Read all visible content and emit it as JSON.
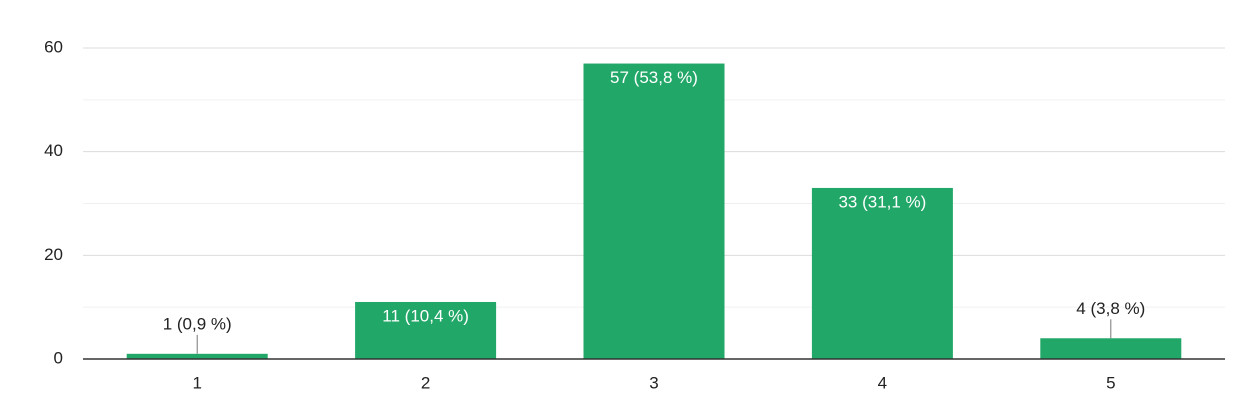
{
  "chart_data": {
    "type": "bar",
    "categories": [
      "1",
      "2",
      "3",
      "4",
      "5"
    ],
    "values": [
      1,
      11,
      57,
      33,
      4
    ],
    "value_labels": [
      "1 (0,9 %)",
      "11 (10,4 %)",
      "57 (53,8 %)",
      "33 (31,1 %)",
      "4 (3,8 %)"
    ],
    "color": "#21a767",
    "ylim": [
      0,
      60
    ],
    "yticks": [
      0,
      20,
      40,
      60
    ],
    "minor_yticks": [
      10,
      30,
      50
    ],
    "grid": true
  }
}
